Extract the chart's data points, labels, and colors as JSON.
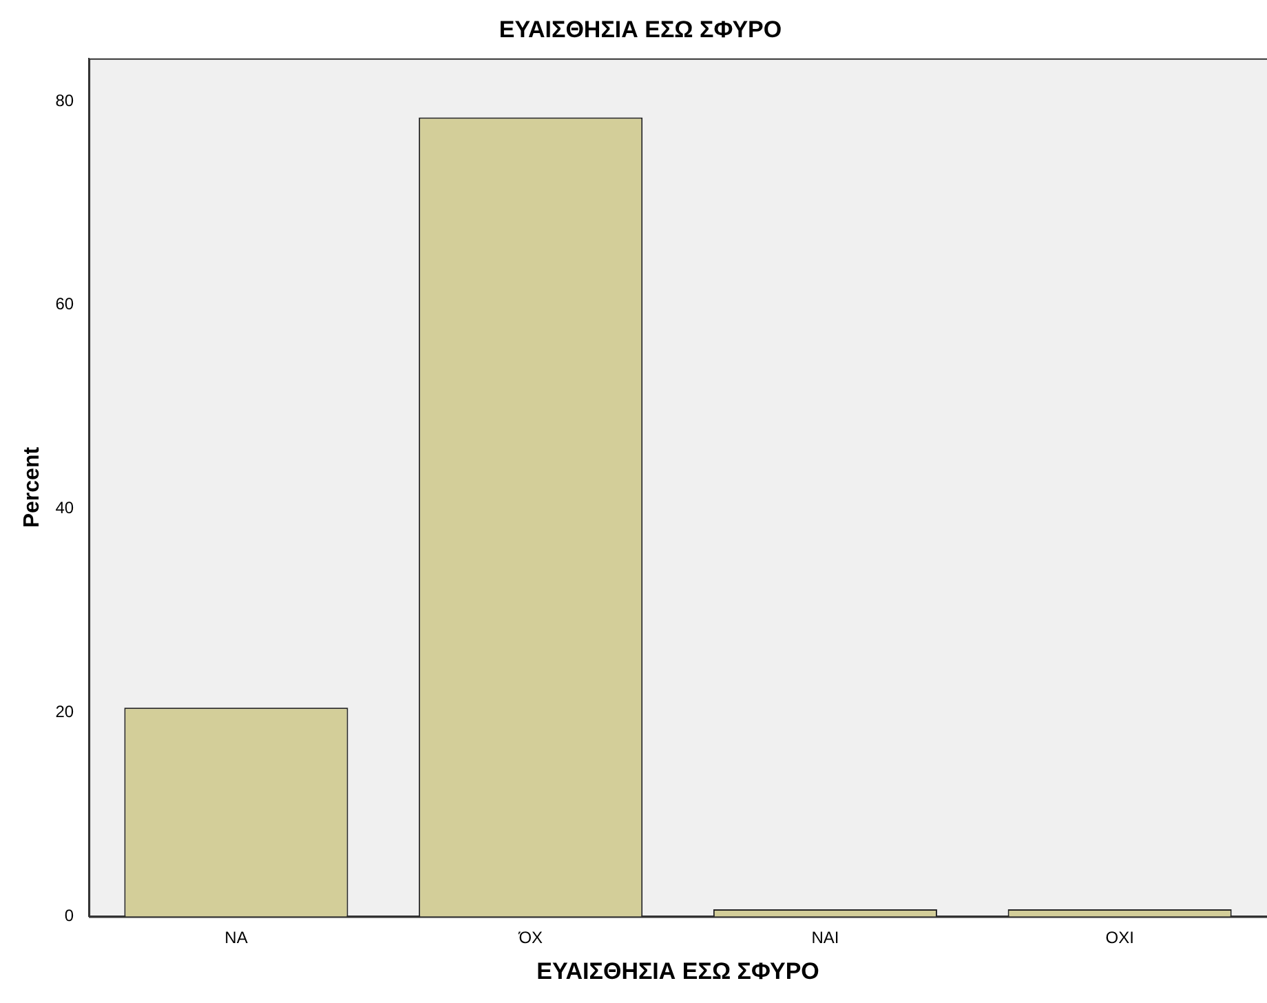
{
  "chart_data": {
    "type": "bar",
    "title": "ΕΥΑΙΣΘΗΣΙΑ ΕΣΩ ΣΦΥΡΟ",
    "xlabel": "ΕΥΑΙΣΘΗΣΙΑ ΕΣΩ ΣΦΥΡΟ",
    "ylabel": "Percent",
    "categories": [
      "ΝΑ",
      "ΌΧ",
      "ΝΑΙ",
      "ΟΧΙ"
    ],
    "values": [
      20.5,
      78.4,
      0.7,
      0.7
    ],
    "color": "#d3ce99",
    "ylim": [
      0,
      84.2
    ],
    "yticks": [
      0,
      20,
      40,
      60,
      80
    ],
    "grid": false,
    "legend": false
  }
}
